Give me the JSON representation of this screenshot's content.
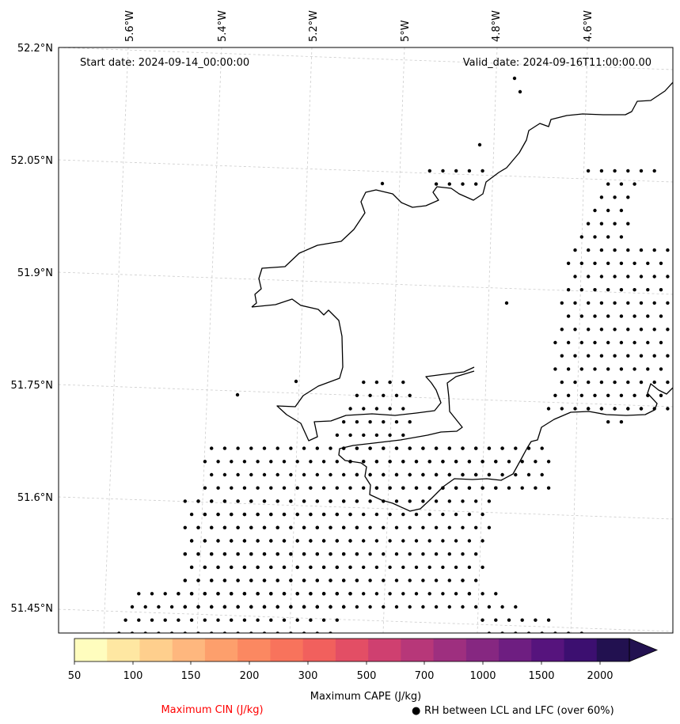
{
  "map": {
    "start_date": "Start date: 2024-09-14_00:00:00",
    "valid_date": "Valid_date: 2024-09-16T11:00:00.00",
    "lon_labels": [
      "5.6°W",
      "5.4°W",
      "5.2°W",
      "5°W",
      "4.8°W",
      "4.6°W"
    ],
    "lat_labels": [
      "52.2°N",
      "52.05°N",
      "51.9°N",
      "51.75°N",
      "51.6°N",
      "51.45°N"
    ],
    "coastline_color": "#000000",
    "gridline_color": "#cccccc",
    "dot_color": "#000000"
  },
  "colorbar": {
    "title": "Maximum CAPE (J/kg)",
    "tick_labels": [
      "50",
      "100",
      "150",
      "200",
      "300",
      "500",
      "700",
      "1000",
      "1500",
      "2000"
    ],
    "colors": [
      "#fffdbe",
      "#fee7a2",
      "#fecf8d",
      "#feb77e",
      "#fd9f6c",
      "#fb8861",
      "#f8735c",
      "#f1605d",
      "#e34e65",
      "#cf4070",
      "#b73779",
      "#9e2f7f",
      "#862781",
      "#6e1e81",
      "#56147d",
      "#3c0f70",
      "#221150"
    ]
  },
  "legend": {
    "cin_label": "Maximum CIN (J/kg)",
    "cin_color": "#ff0000",
    "rh_symbol": "●",
    "rh_label": "RH between LCL and LFC (over 60%)"
  }
}
